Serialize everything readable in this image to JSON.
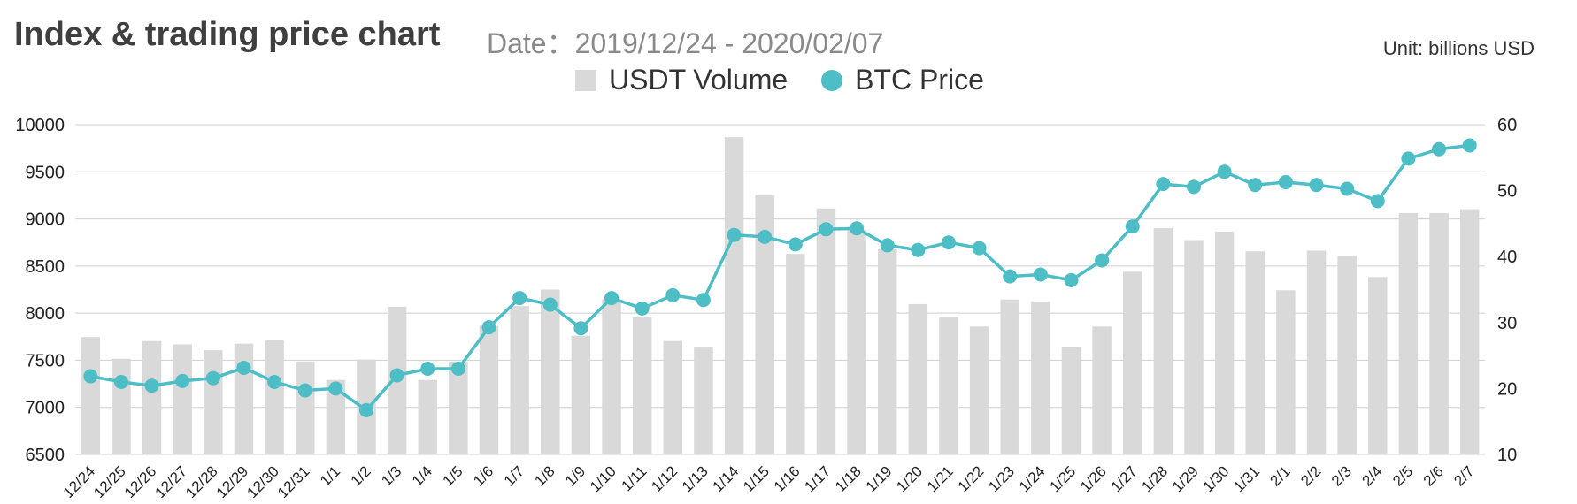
{
  "header": {
    "title": "Index & trading price chart",
    "subtitle": "Date：2019/12/24 - 2020/02/07",
    "unit": "Unit: billions USD"
  },
  "chart_data": {
    "type": "bar+line",
    "categories": [
      "12/24",
      "12/25",
      "12/26",
      "12/27",
      "12/28",
      "12/29",
      "12/30",
      "12/31",
      "1/1",
      "1/2",
      "1/3",
      "1/4",
      "1/5",
      "1/6",
      "1/7",
      "1/8",
      "1/9",
      "1/10",
      "1/11",
      "1/12",
      "1/13",
      "1/14",
      "1/15",
      "1/16",
      "1/17",
      "1/18",
      "1/19",
      "1/20",
      "1/21",
      "1/22",
      "1/23",
      "1/24",
      "1/25",
      "1/26",
      "1/27",
      "1/28",
      "1/29",
      "1/30",
      "1/31",
      "2/1",
      "2/2",
      "2/3",
      "2/4",
      "2/5",
      "2/6",
      "2/7"
    ],
    "series": [
      {
        "name": "USDT Volume",
        "type": "bar",
        "axis": "right",
        "values": [
          27.8,
          24.5,
          27.2,
          26.7,
          25.8,
          26.8,
          27.3,
          24.1,
          21.3,
          24.4,
          32.4,
          21.3,
          24.1,
          29.5,
          32.5,
          35.0,
          28.0,
          33.5,
          30.8,
          27.2,
          26.2,
          58.1,
          49.3,
          40.4,
          47.3,
          44.1,
          41.1,
          32.8,
          30.9,
          29.4,
          33.5,
          33.2,
          26.3,
          29.4,
          37.7,
          44.3,
          42.5,
          43.8,
          40.8,
          34.9,
          40.9,
          40.1,
          36.9,
          46.6,
          46.6,
          47.2
        ],
        "color": "#d9d9d9"
      },
      {
        "name": "BTC Price",
        "type": "line",
        "axis": "left",
        "values": [
          7330,
          7270,
          7230,
          7280,
          7310,
          7420,
          7270,
          7180,
          7200,
          6970,
          7340,
          7410,
          7410,
          7850,
          8160,
          8090,
          7840,
          8160,
          8050,
          8190,
          8140,
          8830,
          8810,
          8730,
          8890,
          8900,
          8720,
          8670,
          8750,
          8690,
          8390,
          8410,
          8350,
          8560,
          8920,
          9370,
          9340,
          9500,
          9360,
          9390,
          9360,
          9320,
          9190,
          9640,
          9740,
          9780
        ],
        "color": "#4dbdc6"
      }
    ],
    "y_left": {
      "min": 6500,
      "max": 10000,
      "ticks": [
        6500,
        7000,
        7500,
        8000,
        8500,
        9000,
        9500,
        10000
      ]
    },
    "y_right": {
      "min": 10,
      "max": 60,
      "ticks": [
        10,
        20,
        30,
        40,
        50,
        60
      ]
    },
    "legend": {
      "placement": "top-center",
      "labels": [
        "USDT Volume",
        "BTC Price"
      ]
    },
    "grid": true
  }
}
